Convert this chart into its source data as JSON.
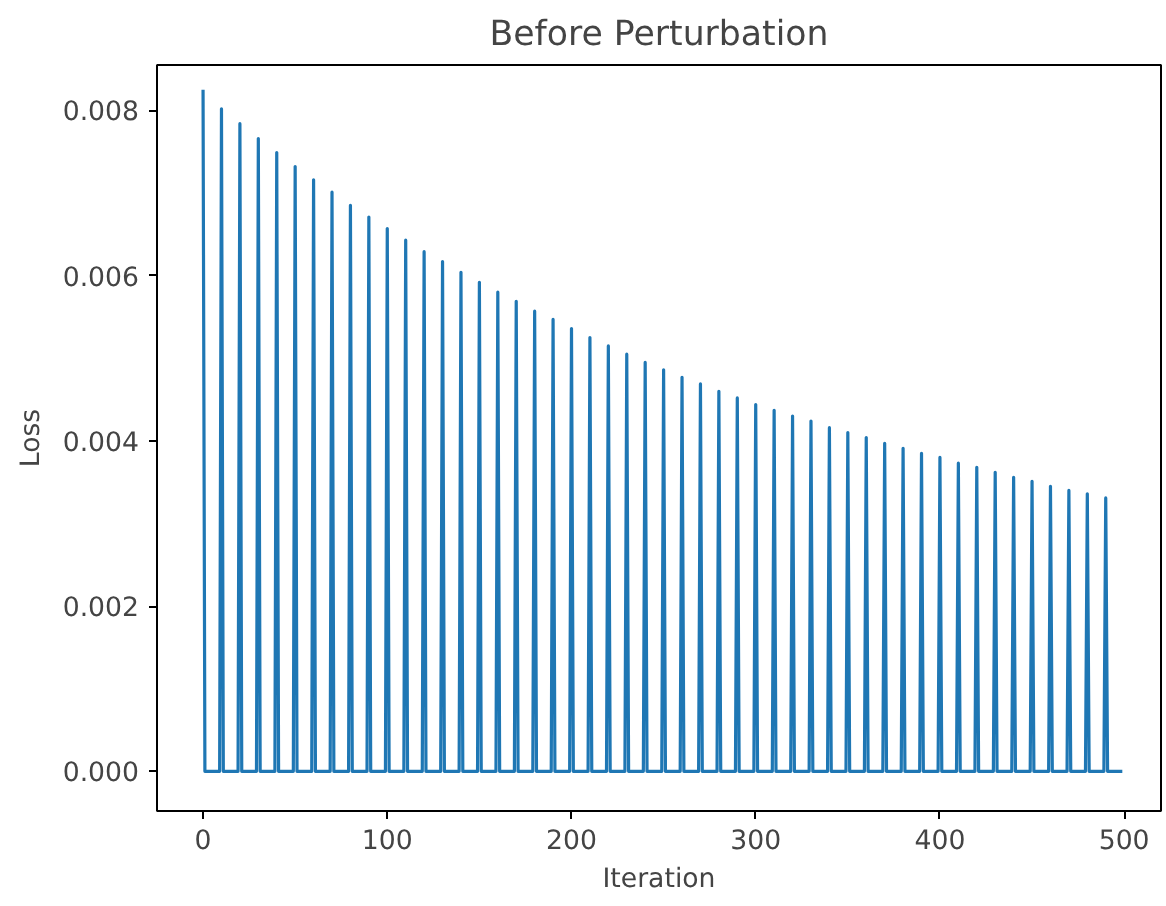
{
  "chart_data": {
    "type": "line",
    "title": "Before Perturbation",
    "xlabel": "Iteration",
    "ylabel": "Loss",
    "x": [
      0,
      1,
      9,
      10,
      11,
      19,
      20,
      21,
      29,
      30,
      31,
      39,
      40,
      41,
      49,
      50,
      51,
      59,
      60,
      61,
      69,
      70,
      71,
      79,
      80,
      81,
      89,
      90,
      91,
      99,
      100,
      101,
      109,
      110,
      111,
      119,
      120,
      121,
      129,
      130,
      131,
      139,
      140,
      141,
      149,
      150,
      151,
      159,
      160,
      161,
      169,
      170,
      171,
      179,
      180,
      181,
      189,
      190,
      191,
      199,
      200,
      201,
      209,
      210,
      211,
      219,
      220,
      221,
      229,
      230,
      231,
      239,
      240,
      241,
      249,
      250,
      251,
      259,
      260,
      261,
      269,
      270,
      271,
      279,
      280,
      281,
      289,
      290,
      291,
      299,
      300,
      301,
      309,
      310,
      311,
      319,
      320,
      321,
      329,
      330,
      331,
      339,
      340,
      341,
      349,
      350,
      351,
      359,
      360,
      361,
      369,
      370,
      371,
      379,
      380,
      381,
      389,
      390,
      391,
      399,
      400,
      401,
      409,
      410,
      411,
      419,
      420,
      421,
      429,
      430,
      431,
      439,
      440,
      441,
      449,
      450,
      451,
      459,
      460,
      461,
      469,
      470,
      471,
      479,
      480,
      481,
      489,
      490,
      491,
      499
    ],
    "series": [
      {
        "color": "#1f77b4",
        "values": [
          0.00825,
          0,
          0,
          0.00802,
          0,
          0,
          0.00784,
          0,
          0,
          0.00766,
          0,
          0,
          0.00749,
          0,
          0,
          0.00732,
          0,
          0,
          0.00716,
          0,
          0,
          0.00701,
          0,
          0,
          0.00685,
          0,
          0,
          0.00671,
          0,
          0,
          0.00657,
          0,
          0,
          0.00643,
          0,
          0,
          0.00629,
          0,
          0,
          0.00617,
          0,
          0,
          0.00604,
          0,
          0,
          0.00592,
          0,
          0,
          0.0058,
          0,
          0,
          0.00569,
          0,
          0,
          0.00557,
          0,
          0,
          0.00547,
          0,
          0,
          0.00536,
          0,
          0,
          0.00525,
          0,
          0,
          0.00515,
          0,
          0,
          0.00505,
          0,
          0,
          0.00495,
          0,
          0,
          0.00486,
          0,
          0,
          0.00477,
          0,
          0,
          0.00469,
          0,
          0,
          0.0046,
          0,
          0,
          0.00452,
          0,
          0,
          0.00444,
          0,
          0,
          0.00437,
          0,
          0,
          0.0043,
          0,
          0,
          0.00424,
          0,
          0,
          0.00416,
          0,
          0,
          0.0041,
          0,
          0,
          0.00404,
          0,
          0,
          0.00397,
          0,
          0,
          0.00391,
          0,
          0,
          0.00385,
          0,
          0,
          0.0038,
          0,
          0,
          0.00373,
          0,
          0,
          0.00368,
          0,
          0,
          0.00362,
          0,
          0,
          0.00356,
          0,
          0,
          0.00351,
          0,
          0,
          0.00345,
          0,
          0,
          0.0034,
          0,
          0,
          0.00336,
          0,
          0,
          0.00331,
          0,
          0
        ]
      }
    ],
    "xlim": [
      -25,
      520
    ],
    "xticks": [
      0,
      100,
      200,
      300,
      400,
      500
    ],
    "ylim": [
      -0.00048,
      0.00855
    ],
    "yticks": [
      {
        "value": 0,
        "label": "0.000"
      },
      {
        "value": 0.002,
        "label": "0.002"
      },
      {
        "value": 0.004,
        "label": "0.004"
      },
      {
        "value": 0.006,
        "label": "0.006"
      },
      {
        "value": 0.008,
        "label": "0.008"
      }
    ],
    "grid": false
  }
}
